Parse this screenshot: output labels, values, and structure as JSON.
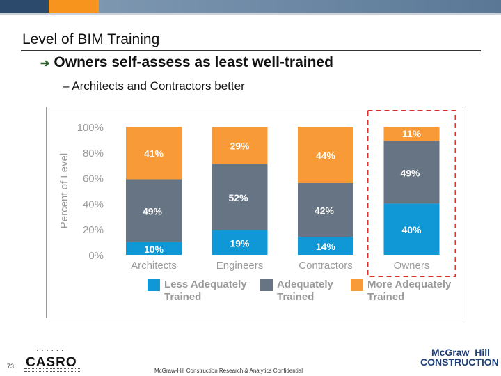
{
  "slide": {
    "title": "Level of BIM Training",
    "bullet": "Owners self-assess as least well-trained",
    "sub_bullet": "– Architects and Contractors better",
    "page_number": "73",
    "footer_text": "McGraw-Hill Construction Research & Analytics Confidential",
    "logo_left": "CASRO",
    "logo_right_line1": "McGraw_Hill",
    "logo_right_line2": "CONSTRUCTION"
  },
  "colors": {
    "less": "#0f97d6",
    "adequate": "#677483",
    "more": "#f79a37",
    "axis_text": "#9a9a9a",
    "highlight": "#d9342b",
    "arrow": "#2b5f2b"
  },
  "chart_data": {
    "type": "bar",
    "stacked": true,
    "percent": true,
    "categories": [
      "Architects",
      "Engineers",
      "Contractors",
      "Owners"
    ],
    "series": [
      {
        "name": "Less Adequately Trained",
        "values": [
          10,
          19,
          14,
          40
        ]
      },
      {
        "name": "Adequately Trained",
        "values": [
          49,
          52,
          42,
          49
        ]
      },
      {
        "name": "More Adequately Trained",
        "values": [
          41,
          29,
          44,
          11
        ]
      }
    ],
    "ylabel": "Percent of Level",
    "ylim": [
      0,
      100
    ],
    "yticks": [
      "0%",
      "20%",
      "40%",
      "60%",
      "80%",
      "100%"
    ],
    "legend_position": "bottom",
    "highlighted_category": "Owners"
  }
}
